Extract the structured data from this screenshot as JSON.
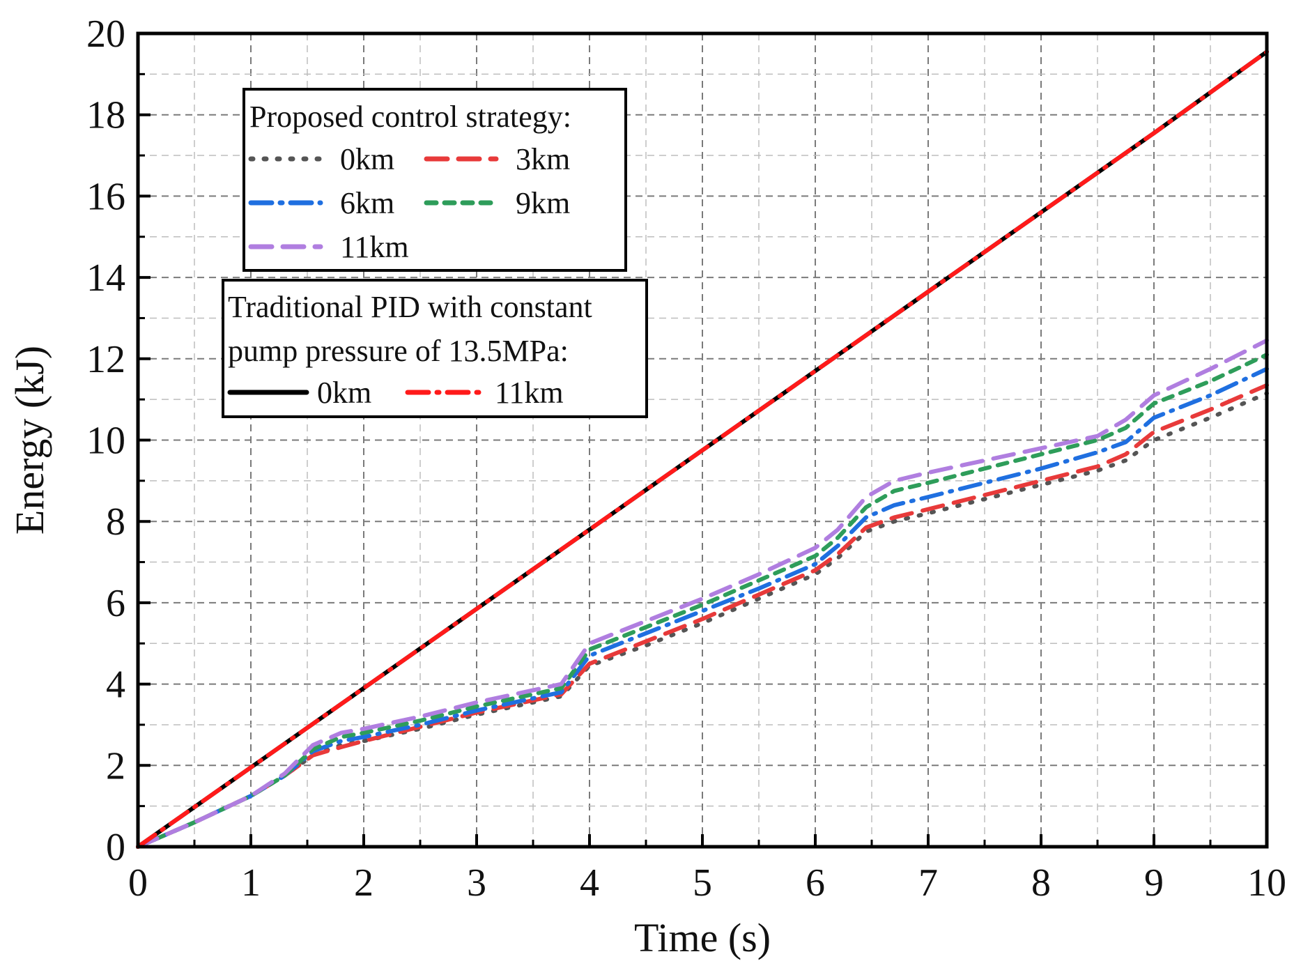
{
  "chart_data": {
    "type": "line",
    "xlabel": "Time (s)",
    "ylabel": "Energy (kJ)",
    "xlim": [
      0,
      10
    ],
    "ylim": [
      0,
      20
    ],
    "xticks": [
      "0",
      "1",
      "2",
      "3",
      "4",
      "5",
      "6",
      "7",
      "8",
      "9",
      "10"
    ],
    "yticks": [
      "0",
      "2",
      "4",
      "6",
      "8",
      "10",
      "12",
      "14",
      "16",
      "18",
      "20"
    ],
    "grid": true,
    "legend_groups": [
      {
        "title": "Proposed control strategy:",
        "placement": "top-left",
        "entries": [
          "0km",
          "3km",
          "6km",
          "9km",
          "11km"
        ]
      },
      {
        "title": "Traditional PID with constant pump pressure of 13.5MPa:",
        "title_lines": [
          "Traditional PID with constant",
          "pump pressure of 13.5MPa:"
        ],
        "placement": "upper-left",
        "entries": [
          "0km",
          "11km"
        ]
      }
    ],
    "series": [
      {
        "name": "0km",
        "group": 0,
        "color": "#555555",
        "dash": "dot",
        "x": [
          0,
          0.5,
          1.0,
          1.3,
          1.55,
          1.8,
          2.0,
          2.5,
          3.0,
          3.5,
          3.75,
          4.0,
          4.5,
          5.0,
          5.5,
          6.0,
          6.2,
          6.45,
          6.7,
          7.0,
          7.5,
          8.0,
          8.5,
          8.75,
          9.0,
          9.5,
          10.0
        ],
        "y": [
          0,
          0.6,
          1.25,
          1.75,
          2.25,
          2.5,
          2.6,
          2.9,
          3.25,
          3.55,
          3.7,
          4.45,
          4.95,
          5.5,
          6.1,
          6.7,
          7.1,
          7.75,
          8.0,
          8.2,
          8.55,
          8.9,
          9.25,
          9.5,
          10.0,
          10.55,
          11.15
        ]
      },
      {
        "name": "3km",
        "group": 0,
        "color": "#e83a3a",
        "dash": "dash",
        "x": [
          0,
          0.5,
          1.0,
          1.3,
          1.55,
          1.8,
          2.0,
          2.5,
          3.0,
          3.5,
          3.75,
          4.0,
          4.5,
          5.0,
          5.5,
          6.0,
          6.2,
          6.45,
          6.7,
          7.0,
          7.5,
          8.0,
          8.5,
          8.75,
          9.0,
          9.5,
          10.0
        ],
        "y": [
          0,
          0.6,
          1.25,
          1.75,
          2.25,
          2.45,
          2.6,
          2.95,
          3.3,
          3.6,
          3.75,
          4.5,
          5.05,
          5.6,
          6.2,
          6.8,
          7.2,
          7.85,
          8.1,
          8.3,
          8.65,
          9.0,
          9.35,
          9.65,
          10.2,
          10.75,
          11.35
        ]
      },
      {
        "name": "6km",
        "group": 0,
        "color": "#1f6fe0",
        "dash": "dashdot",
        "x": [
          0,
          0.5,
          1.0,
          1.3,
          1.55,
          1.8,
          2.0,
          2.5,
          3.0,
          3.5,
          3.75,
          4.0,
          4.5,
          5.0,
          5.5,
          6.0,
          6.2,
          6.45,
          6.7,
          7.0,
          7.5,
          8.0,
          8.5,
          8.75,
          9.0,
          9.5,
          10.0
        ],
        "y": [
          0,
          0.6,
          1.25,
          1.75,
          2.35,
          2.6,
          2.7,
          3.0,
          3.35,
          3.65,
          3.8,
          4.7,
          5.25,
          5.8,
          6.35,
          6.95,
          7.4,
          8.1,
          8.4,
          8.6,
          8.95,
          9.3,
          9.7,
          9.95,
          10.55,
          11.1,
          11.75
        ]
      },
      {
        "name": "9km",
        "group": 0,
        "color": "#2e9d5a",
        "dash": "shortdash",
        "x": [
          0,
          0.5,
          1.0,
          1.3,
          1.55,
          1.8,
          2.0,
          2.5,
          3.0,
          3.5,
          3.75,
          4.0,
          4.5,
          5.0,
          5.5,
          6.0,
          6.2,
          6.45,
          6.7,
          7.0,
          7.5,
          8.0,
          8.5,
          8.75,
          9.0,
          9.5,
          10.0
        ],
        "y": [
          0,
          0.6,
          1.25,
          1.75,
          2.4,
          2.7,
          2.8,
          3.1,
          3.45,
          3.75,
          3.9,
          4.85,
          5.4,
          5.95,
          6.55,
          7.15,
          7.6,
          8.35,
          8.75,
          8.95,
          9.3,
          9.65,
          10.0,
          10.3,
          10.9,
          11.45,
          12.1
        ]
      },
      {
        "name": "11km",
        "group": 0,
        "color": "#b07ee0",
        "dash": "dash",
        "x": [
          0,
          0.5,
          1.0,
          1.3,
          1.55,
          1.8,
          2.0,
          2.5,
          3.0,
          3.5,
          3.75,
          4.0,
          4.5,
          5.0,
          5.5,
          6.0,
          6.2,
          6.45,
          6.7,
          7.0,
          7.5,
          8.0,
          8.5,
          8.75,
          9.0,
          9.5,
          10.0
        ],
        "y": [
          0,
          0.6,
          1.25,
          1.8,
          2.5,
          2.8,
          2.9,
          3.2,
          3.55,
          3.85,
          4.0,
          5.0,
          5.55,
          6.1,
          6.7,
          7.35,
          7.8,
          8.6,
          9.0,
          9.2,
          9.5,
          9.8,
          10.1,
          10.5,
          11.1,
          11.75,
          12.45
        ]
      },
      {
        "name": "0km",
        "group": 1,
        "color": "#000000",
        "dash": "solid",
        "x": [
          0,
          1,
          2,
          3,
          4,
          5,
          6,
          7,
          8,
          9,
          10
        ],
        "y": [
          0,
          1.95,
          3.9,
          5.85,
          7.8,
          9.75,
          11.7,
          13.65,
          15.6,
          17.55,
          19.55
        ]
      },
      {
        "name": "11km",
        "group": 1,
        "color": "#ff1a1a",
        "dash": "dashdot",
        "x": [
          0,
          1,
          2,
          3,
          4,
          5,
          6,
          7,
          8,
          9,
          10
        ],
        "y": [
          0,
          1.95,
          3.9,
          5.85,
          7.8,
          9.75,
          11.7,
          13.65,
          15.6,
          17.55,
          19.55
        ]
      }
    ]
  }
}
